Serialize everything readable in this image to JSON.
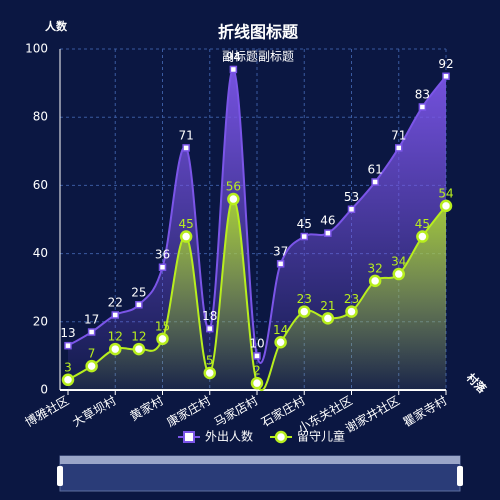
{
  "chart_data": {
    "type": "line",
    "title": "折线图标题",
    "subtitle": "副标题副标题",
    "y_axis_label": "人数",
    "x_axis_label": "村落",
    "categories": [
      "博雅社区",
      null,
      "大草坝村",
      null,
      "黄家村",
      null,
      "康家庄村",
      null,
      "马家店村",
      null,
      "石家庄村",
      null,
      "小东关社区",
      null,
      "谢家井社区",
      null,
      "瞿家寺村"
    ],
    "series": [
      {
        "name": "外出人数",
        "color": "#7b55e8",
        "values": [
          13,
          17,
          22,
          25,
          36,
          71,
          18,
          94,
          10,
          37,
          45,
          46,
          53,
          61,
          71,
          83,
          92
        ]
      },
      {
        "name": "留守儿童",
        "color": "#b8ee1e",
        "values": [
          3,
          7,
          12,
          12,
          15,
          45,
          5,
          56,
          2,
          14,
          23,
          21,
          23,
          32,
          34,
          45,
          54
        ]
      }
    ],
    "ylim": [
      0,
      100
    ],
    "yticks": [
      0,
      20,
      40,
      60,
      80,
      100
    ],
    "grid": true,
    "legend": "bottom"
  }
}
